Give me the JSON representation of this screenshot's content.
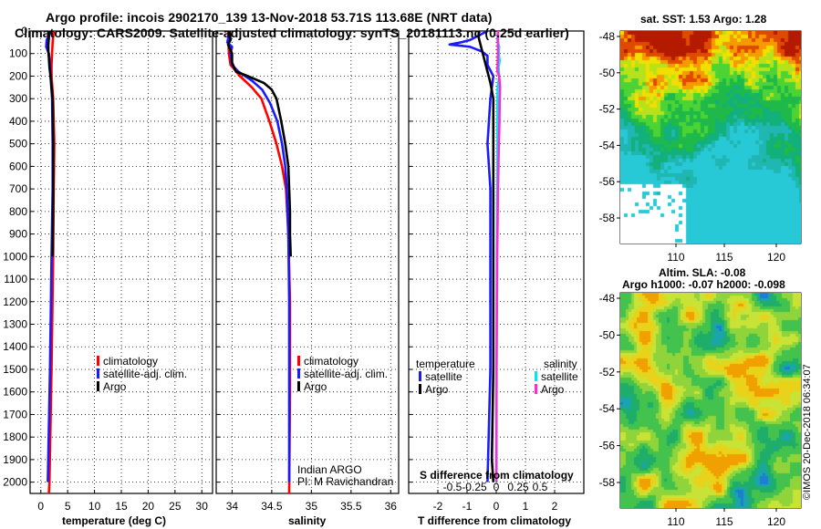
{
  "header": {
    "title_line1": "Argo profile: incois 2902170_139 13-Nov-2018 53.71S 113.68E (NRT data)",
    "title_line2": "Climatology: CARS2009. Satellite-adjusted climatology: synTS_20181113.nc (0.25d earlier)"
  },
  "colors": {
    "climatology": "#ff0000",
    "satellite": "#1a1aff",
    "argo": "#000000",
    "salinity_sat": "#00e8e8",
    "salinity_argo": "#ff2bd6"
  },
  "chart_data": [
    {
      "type": "line",
      "name": "temperature-profile",
      "xlabel": "temperature (deg C)",
      "ylabel": "",
      "xlim": [
        -2,
        32
      ],
      "ylim": [
        2050,
        0
      ],
      "xticks": [
        0,
        5,
        10,
        15,
        20,
        25,
        30
      ],
      "xtick_labels": [
        "0",
        "5",
        "10",
        "15",
        "20",
        "25",
        "30"
      ],
      "yticks": [
        0,
        100,
        200,
        300,
        400,
        500,
        600,
        700,
        800,
        900,
        1000,
        1100,
        1200,
        1300,
        1400,
        1500,
        1600,
        1700,
        1800,
        1900,
        2000
      ],
      "ytick_labels": [
        "0",
        "100",
        "200",
        "300",
        "400",
        "500",
        "600",
        "700",
        "800",
        "900",
        "1000",
        "1100",
        "1200",
        "1300",
        "1400",
        "1500",
        "1600",
        "1700",
        "1800",
        "1900",
        "2000"
      ],
      "legend": [
        "climatology",
        "satellite-adj. clim.",
        "Argo"
      ],
      "series": [
        {
          "name": "climatology",
          "color": "#ff0000",
          "depth": [
            0,
            50,
            100,
            150,
            200,
            300,
            500,
            700,
            1000,
            1500,
            2000,
            2050
          ],
          "values": [
            2.4,
            2.2,
            2.1,
            2.0,
            2.0,
            2.3,
            2.5,
            2.4,
            2.3,
            2.0,
            1.6,
            1.5
          ]
        },
        {
          "name": "satellite-adj. clim.",
          "color": "#1a1aff",
          "depth": [
            0,
            40,
            70,
            100,
            150,
            200,
            300,
            500,
            700,
            1000,
            1500,
            2000
          ],
          "values": [
            1.9,
            1.1,
            1.0,
            1.5,
            1.7,
            1.8,
            2.1,
            2.2,
            2.2,
            2.0,
            1.7,
            1.3
          ]
        },
        {
          "name": "Argo",
          "color": "#000000",
          "depth": [
            0,
            30,
            60,
            90,
            120,
            160,
            200,
            300,
            500,
            700,
            1000
          ],
          "values": [
            1.6,
            1.5,
            1.4,
            1.4,
            1.5,
            1.6,
            1.8,
            2.2,
            2.3,
            2.3,
            2.2
          ]
        }
      ]
    },
    {
      "type": "line",
      "name": "salinity-profile",
      "xlabel": "salinity",
      "xlim": [
        33.8,
        36.1
      ],
      "ylim": [
        2050,
        0
      ],
      "xticks": [
        34,
        34.5,
        35,
        35.5,
        36
      ],
      "xtick_labels": [
        "34",
        "34.5",
        "35",
        "35.5",
        "36"
      ],
      "yticks": [
        0,
        100,
        200,
        300,
        400,
        500,
        600,
        700,
        800,
        900,
        1000,
        1100,
        1200,
        1300,
        1400,
        1500,
        1600,
        1700,
        1800,
        1900,
        2000
      ],
      "legend": [
        "climatology",
        "satellite-adj. clim.",
        "Argo"
      ],
      "credit_line1": "Indian ARGO",
      "credit_line2": "PI: M Ravichandran",
      "series": [
        {
          "name": "climatology",
          "color": "#ff0000",
          "depth": [
            0,
            100,
            150,
            200,
            250,
            300,
            400,
            500,
            600,
            700,
            900,
            1200,
            1600,
            2050
          ],
          "values": [
            33.95,
            33.96,
            33.98,
            34.1,
            34.25,
            34.37,
            34.47,
            34.56,
            34.63,
            34.68,
            34.71,
            34.73,
            34.73,
            34.72
          ]
        },
        {
          "name": "satellite-adj. clim.",
          "color": "#1a1aff",
          "depth": [
            0,
            50,
            70,
            100,
            150,
            180,
            220,
            260,
            320,
            400,
            500,
            600,
            700,
            900,
            1200,
            1600,
            2000
          ],
          "values": [
            33.97,
            33.94,
            34.0,
            33.98,
            34.0,
            34.08,
            34.25,
            34.38,
            34.48,
            34.57,
            34.63,
            34.67,
            34.69,
            34.71,
            34.72,
            34.72,
            34.72
          ]
        },
        {
          "name": "Argo",
          "color": "#000000",
          "depth": [
            0,
            40,
            60,
            100,
            140,
            180,
            200,
            230,
            260,
            300,
            400,
            500,
            600,
            700,
            800,
            900,
            1000
          ],
          "values": [
            33.97,
            33.98,
            33.95,
            34.0,
            34.0,
            34.05,
            34.2,
            34.4,
            34.5,
            34.56,
            34.62,
            34.67,
            34.71,
            34.72,
            34.73,
            34.73,
            34.74
          ]
        }
      ]
    },
    {
      "type": "line",
      "name": "difference-profile",
      "xlabel": "T difference from climatology",
      "xlabel_top": "S difference from climatology",
      "xlim": [
        -3,
        3
      ],
      "ylim": [
        2050,
        0
      ],
      "xticks": [
        -2,
        -1,
        0,
        1,
        2
      ],
      "xtick_labels": [
        "-2",
        "-1",
        "0",
        "1",
        "2"
      ],
      "s_xtick_labels": [
        "-0.5",
        "-0.25",
        "0",
        "0.25",
        "0.5"
      ],
      "yticks": [
        0,
        100,
        200,
        300,
        400,
        500,
        600,
        700,
        800,
        900,
        1000,
        1100,
        1200,
        1300,
        1400,
        1500,
        1600,
        1700,
        1800,
        1900,
        2000
      ],
      "legend_temperature_title": "temperature",
      "legend_salinity_title": "salinity",
      "legend": [
        "satellite",
        "Argo",
        "satellite",
        "Argo"
      ],
      "series": [
        {
          "name": "T satellite",
          "color": "#1a1aff",
          "depth": [
            0,
            40,
            50,
            60,
            70,
            90,
            110,
            150,
            200,
            300,
            500,
            700,
            1000,
            1500,
            2000
          ],
          "values": [
            -0.3,
            -0.9,
            -1.2,
            -1.6,
            -0.9,
            -0.5,
            -0.3,
            -0.3,
            -0.1,
            -0.2,
            -0.3,
            -0.2,
            -0.2,
            -0.2,
            -0.3
          ]
        },
        {
          "name": "T Argo",
          "color": "#000000",
          "depth": [
            0,
            30,
            80,
            130,
            180,
            230,
            300,
            500,
            700,
            1000,
            1500,
            1900,
            2000
          ],
          "values": [
            -0.6,
            -0.6,
            -0.5,
            -0.4,
            -0.3,
            -0.2,
            -0.1,
            -0.1,
            -0.1,
            -0.1,
            -0.1,
            -0.15,
            -0.1
          ]
        },
        {
          "name": "S satellite",
          "color": "#00e8e8",
          "depth": [
            0,
            40,
            70,
            100,
            130,
            160,
            200,
            250,
            300,
            500,
            700,
            1000,
            1500,
            2000
          ],
          "values": [
            0.06,
            0.04,
            0.1,
            0.08,
            0.12,
            0.08,
            0.1,
            0.05,
            0.04,
            0.04,
            0.03,
            0.02,
            0.01,
            0.01
          ]
        },
        {
          "name": "S Argo",
          "color": "#ff2bd6",
          "depth": [
            0,
            100,
            180,
            200,
            250,
            300,
            400,
            500,
            700,
            1000,
            1500,
            2000
          ],
          "values": [
            0.06,
            0.06,
            0.04,
            0.1,
            0.13,
            0.12,
            0.11,
            0.09,
            0.06,
            0.03,
            0.01,
            0.0
          ]
        }
      ]
    }
  ],
  "maps": {
    "sst": {
      "title": "sat. SST: 1.53 Argo: 1.28",
      "yticks": [
        "-48",
        "-50",
        "-52",
        "-54",
        "-56",
        "-58"
      ],
      "xticks": [
        "110",
        "115",
        "120"
      ]
    },
    "sla": {
      "title1": "Altim. SLA: -0.08",
      "title2": "Argo h1000: -0.07 h2000: -0.098",
      "yticks": [
        "-48",
        "-50",
        "-52",
        "-54",
        "-56",
        "-58"
      ],
      "xticks": [
        "110",
        "115",
        "120"
      ]
    },
    "watermark": "©IMOS 20-Dec-2018 06:34:07"
  }
}
